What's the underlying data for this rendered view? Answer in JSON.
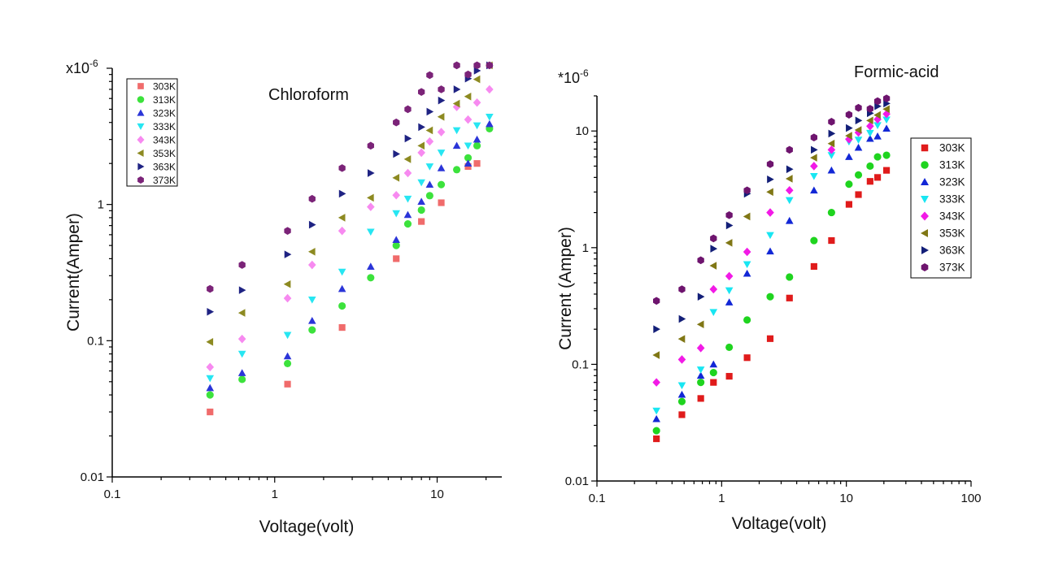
{
  "chart_data": [
    {
      "type": "scatter",
      "title": "Chloroform",
      "xlabel": "Voltage(volt)",
      "ylabel": "Current(Amper)",
      "y_multiplier": "x10-6",
      "xscale": "log",
      "yscale": "log",
      "xlim": [
        0.1,
        25
      ],
      "ylim": [
        0.01,
        10
      ],
      "x_ticks": [
        "0.1",
        "1",
        "10"
      ],
      "y_ticks": [
        "0.01",
        "0.1",
        "1"
      ],
      "legend_position": "top-left",
      "grid": false,
      "x": [
        0.4,
        0.63,
        1.2,
        1.7,
        2.6,
        3.9,
        5.6,
        6.6,
        8.0,
        9.0,
        10.6,
        13.2,
        15.5,
        17.6,
        21.0
      ],
      "series": [
        {
          "name": "303K",
          "marker": "square",
          "color": "#f06b6b",
          "points": [
            [
              0.4,
              0.03
            ],
            [
              1.2,
              0.048
            ],
            [
              2.6,
              0.125
            ],
            [
              5.6,
              0.4
            ],
            [
              8.0,
              0.75
            ],
            [
              10.6,
              1.03
            ],
            [
              15.5,
              1.9
            ],
            [
              17.6,
              2.0
            ]
          ]
        },
        {
          "name": "313K",
          "marker": "circle",
          "color": "#3ce23c",
          "values": [
            0.04,
            0.052,
            0.068,
            0.12,
            0.18,
            0.29,
            0.5,
            0.72,
            0.91,
            1.16,
            1.4,
            1.8,
            2.2,
            2.7,
            3.6
          ]
        },
        {
          "name": "323K",
          "marker": "triangle-up",
          "color": "#2b35d8",
          "values": [
            0.045,
            0.058,
            0.077,
            0.14,
            0.24,
            0.35,
            0.55,
            0.84,
            1.05,
            1.4,
            1.85,
            2.7,
            2.0,
            3.0,
            3.9
          ]
        },
        {
          "name": "333K",
          "marker": "triangle-down",
          "color": "#27e6f2",
          "values": [
            0.053,
            0.08,
            0.11,
            0.2,
            0.32,
            0.63,
            0.86,
            1.1,
            1.45,
            1.9,
            2.4,
            3.5,
            2.7,
            3.8,
            4.4
          ]
        },
        {
          "name": "343K",
          "marker": "diamond",
          "color": "#f78af0",
          "values": [
            0.064,
            0.103,
            0.205,
            0.36,
            0.64,
            0.96,
            1.17,
            1.7,
            2.4,
            2.9,
            3.4,
            5.2,
            4.2,
            5.6,
            7.0
          ]
        },
        {
          "name": "353K",
          "marker": "triangle-left",
          "color": "#8d8a21",
          "values": [
            0.098,
            0.16,
            0.26,
            0.45,
            0.8,
            1.12,
            1.57,
            2.15,
            2.7,
            3.5,
            4.4,
            5.5,
            6.2,
            8.3,
            10.5
          ]
        },
        {
          "name": "363K",
          "marker": "triangle-right",
          "color": "#1f2383",
          "values": [
            0.163,
            0.235,
            0.43,
            0.71,
            1.2,
            1.7,
            2.35,
            3.05,
            3.7,
            4.8,
            5.8,
            7.0,
            8.4,
            9.6,
            10.5
          ]
        },
        {
          "name": "373K",
          "marker": "hexagon",
          "color": "#7b2378",
          "values": [
            0.24,
            0.36,
            0.64,
            1.1,
            1.85,
            2.7,
            4.0,
            5.0,
            6.7,
            8.9,
            7.0,
            10.5,
            9.0,
            10.5,
            10.5
          ]
        }
      ]
    },
    {
      "type": "scatter",
      "title": "Formic-acid",
      "xlabel": "Voltage(volt)",
      "ylabel": "Current (Amper)",
      "y_multiplier": "*10-6",
      "xscale": "log",
      "yscale": "log",
      "xlim": [
        0.1,
        100
      ],
      "ylim": [
        0.01,
        20
      ],
      "x_ticks": [
        "0.1",
        "1",
        "10",
        "100"
      ],
      "y_ticks": [
        "0.01",
        "0.1",
        "1",
        "10"
      ],
      "legend_position": "right",
      "grid": false,
      "x": [
        0.3,
        0.48,
        0.68,
        0.86,
        1.15,
        1.6,
        2.45,
        3.5,
        5.5,
        7.6,
        10.5,
        12.5,
        15.5,
        17.8,
        21.0
      ],
      "series": [
        {
          "name": "303K",
          "marker": "square",
          "color": "#e01b1b",
          "values": [
            0.023,
            0.037,
            0.051,
            0.07,
            0.079,
            0.114,
            0.166,
            0.37,
            0.69,
            1.15,
            2.35,
            2.85,
            3.7,
            4.0,
            4.6
          ]
        },
        {
          "name": "313K",
          "marker": "circle",
          "color": "#1fd41f",
          "values": [
            0.027,
            0.048,
            0.07,
            0.085,
            0.14,
            0.24,
            0.38,
            0.56,
            1.15,
            2.0,
            3.5,
            4.2,
            5.0,
            6.0,
            6.2
          ]
        },
        {
          "name": "323K",
          "marker": "triangle-up",
          "color": "#1227d6",
          "values": [
            0.034,
            0.055,
            0.08,
            0.1,
            0.34,
            0.6,
            0.93,
            1.7,
            3.1,
            4.6,
            6.0,
            7.2,
            8.6,
            9.0,
            10.5
          ]
        },
        {
          "name": "333K",
          "marker": "triangle-down",
          "color": "#18e6f2",
          "values": [
            0.04,
            0.066,
            0.09,
            0.28,
            0.43,
            0.72,
            1.28,
            2.55,
            4.1,
            6.2,
            8.1,
            8.4,
            9.6,
            11.2,
            12.5
          ]
        },
        {
          "name": "343K",
          "marker": "diamond",
          "color": "#f21ae6",
          "values": [
            0.07,
            0.11,
            0.138,
            0.44,
            0.57,
            0.92,
            2.0,
            3.1,
            5.0,
            6.9,
            8.5,
            9.7,
            11.0,
            12.6,
            14.0
          ]
        },
        {
          "name": "353K",
          "marker": "triangle-left",
          "color": "#807715",
          "values": [
            0.12,
            0.165,
            0.22,
            0.7,
            1.1,
            1.85,
            3.0,
            3.9,
            5.9,
            7.8,
            9.1,
            10.2,
            12.3,
            13.7,
            15.4
          ]
        },
        {
          "name": "363K",
          "marker": "triangle-right",
          "color": "#131f78",
          "values": [
            0.2,
            0.245,
            0.38,
            0.98,
            1.55,
            2.9,
            3.85,
            4.7,
            6.9,
            9.5,
            10.6,
            12.3,
            14.2,
            16.3,
            17.2
          ]
        },
        {
          "name": "373K",
          "marker": "hexagon",
          "color": "#6e146e",
          "values": [
            0.35,
            0.44,
            0.78,
            1.2,
            1.9,
            3.1,
            5.2,
            6.9,
            8.8,
            12.0,
            13.8,
            15.8,
            15.5,
            18.0,
            19.0
          ]
        }
      ]
    }
  ]
}
